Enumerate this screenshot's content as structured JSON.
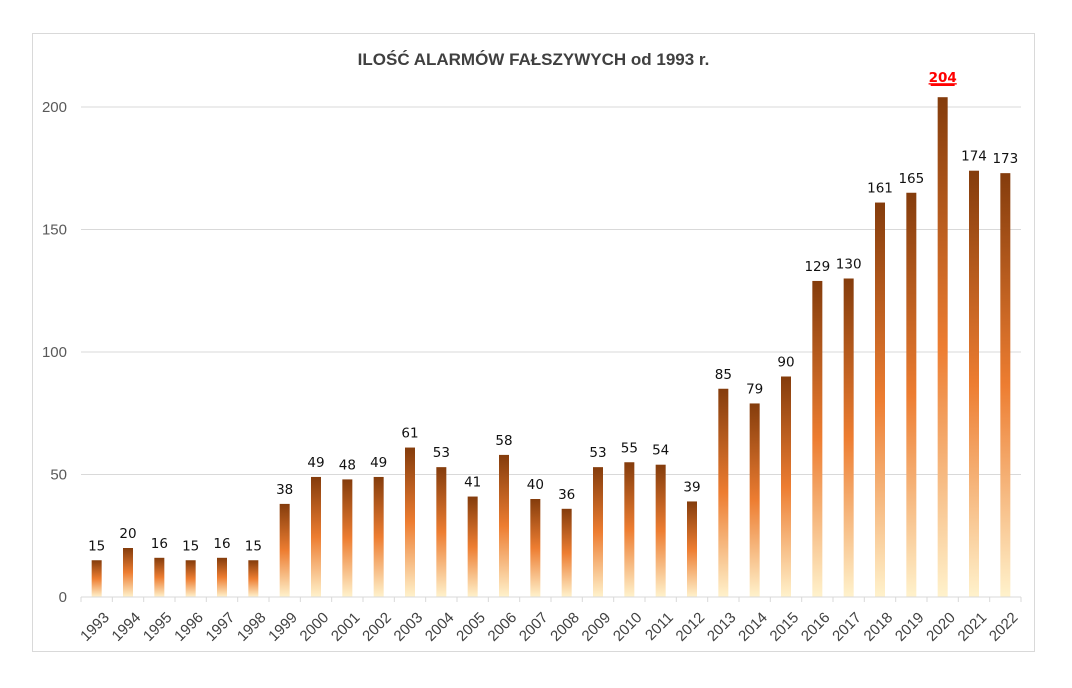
{
  "chart_data": {
    "type": "bar",
    "title": "ILOŚĆ ALARMÓW  FAŁSZYWYCH od 1993 r.",
    "xlabel": "",
    "ylabel": "",
    "ylim": [
      0,
      200
    ],
    "yticks": [
      0,
      50,
      100,
      150,
      200
    ],
    "grid": true,
    "legend": "none",
    "categories": [
      "1993",
      "1994",
      "1995",
      "1996",
      "1997",
      "1998",
      "1999",
      "2000",
      "2001",
      "2002",
      "2003",
      "2004",
      "2005",
      "2006",
      "2007",
      "2008",
      "2009",
      "2010",
      "2011",
      "2012",
      "2013",
      "2014",
      "2015",
      "2016",
      "2017",
      "2018",
      "2019",
      "2020",
      "2021",
      "2022"
    ],
    "values": [
      15,
      20,
      16,
      15,
      16,
      15,
      38,
      49,
      48,
      49,
      61,
      53,
      41,
      58,
      40,
      36,
      53,
      55,
      54,
      39,
      85,
      79,
      90,
      129,
      130,
      161,
      165,
      204,
      174,
      173
    ],
    "highlight": {
      "category": "2020",
      "color": "#ff0000"
    },
    "colors": {
      "bar_top": "#843c0c",
      "bar_mid": "#ed7d31",
      "bar_bottom": "#fff2cc",
      "grid": "#d9d9d9"
    }
  }
}
